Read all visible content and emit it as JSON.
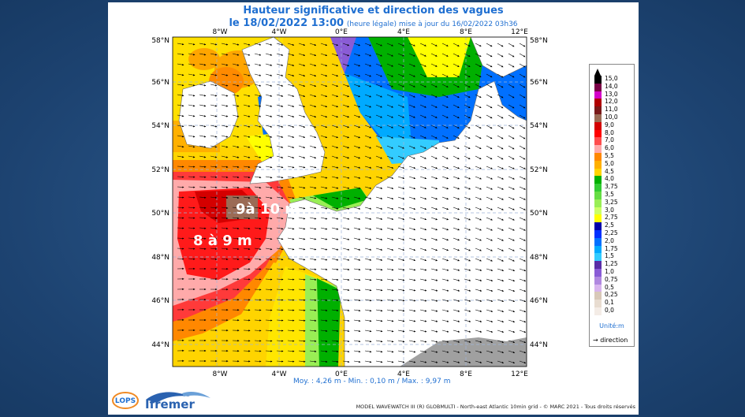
{
  "title": "Hauteur significative et direction des vagues",
  "subtitle": {
    "date": "le 18/02/2022 13:00",
    "note": "(heure légale) mise à jour du 16/02/2022 03h36"
  },
  "axes": {
    "lon_labels": [
      "8°W",
      "4°W",
      "0°E",
      "4°E",
      "8°E",
      "12°E"
    ],
    "lat_labels": [
      "58°N",
      "56°N",
      "54°N",
      "52°N",
      "50°N",
      "48°N",
      "46°N",
      "44°N"
    ]
  },
  "annotations": [
    "9à 10 m",
    "8 à 9 m"
  ],
  "legend": {
    "levels": [
      "15,0",
      "14,0",
      "13,0",
      "12,0",
      "11,0",
      "10,0",
      "9,0",
      "8,0",
      "7,0",
      "6,0",
      "5,5",
      "5,0",
      "4,5",
      "4,0",
      "3,75",
      "3,5",
      "3,25",
      "3,0",
      "2,75",
      "2,5",
      "2,25",
      "2,0",
      "1,75",
      "1,5",
      "1,25",
      "1,0",
      "0,75",
      "0,5",
      "0,25",
      "0,1",
      "0,0"
    ],
    "colors": [
      "#000000",
      "#7a0046",
      "#d400c8",
      "#b00000",
      "#7a1a1a",
      "#9b6b55",
      "#d40000",
      "#ff0000",
      "#ff4d4d",
      "#ffaaaa",
      "#ff8800",
      "#ffb000",
      "#ffd400",
      "#00b000",
      "#33cc33",
      "#66dd44",
      "#99ee55",
      "#ccff66",
      "#ffff00",
      "#0000aa",
      "#0030ff",
      "#0070ff",
      "#00aaff",
      "#33ccff",
      "#5a2ea6",
      "#8a5cd6",
      "#b088e0",
      "#d8b4ee",
      "#d8c8b8",
      "#e8dcd0",
      "#f4ece6"
    ],
    "unit": "Unité:m",
    "direction_label": "direction"
  },
  "stats": "Moy. : 4,26 m  -  Min. : 0,10 m / Max. : 9,97 m",
  "credit": "MODEL WAVEWATCH III (R) GLOBMULTI - North-east Atlantic 10min grid - © MARC 2021 - Tous droits réservés",
  "logos": {
    "lops": "LOPS",
    "ifremer": "Ifremer"
  },
  "colors": {
    "land": "#ffffff",
    "land_grey": "#a0a0a0",
    "grid": "#9fb4d8",
    "accent": "#1f6fd1"
  }
}
